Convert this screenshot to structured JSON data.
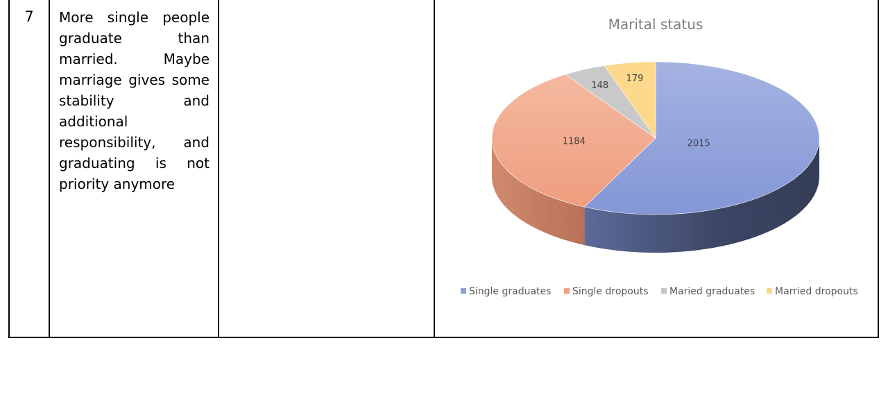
{
  "row": {
    "number": "7",
    "observation": "More single people graduate than married. Maybe marriage gives some stability and additional responsibility, and graduating is not priority anymore",
    "middle_cell": ""
  },
  "colors": {
    "single_graduates": "#8ea1dc",
    "single_dropouts": "#f1a385",
    "maried_graduates": "#c6c6c6",
    "married_dropouts": "#fbd888"
  },
  "chart_data": {
    "type": "pie",
    "title": "Marital status",
    "style": "3d",
    "legend_position": "bottom",
    "start_angle_deg": 0,
    "direction": "clockwise",
    "series": [
      {
        "name": "Single graduates",
        "value": 2015,
        "label": "2015"
      },
      {
        "name": "Single dropouts",
        "value": 1184,
        "label": "1184"
      },
      {
        "name": "Maried graduates",
        "value": 148,
        "label": "148"
      },
      {
        "name": "Married dropouts",
        "value": 179,
        "label": "179"
      }
    ]
  }
}
